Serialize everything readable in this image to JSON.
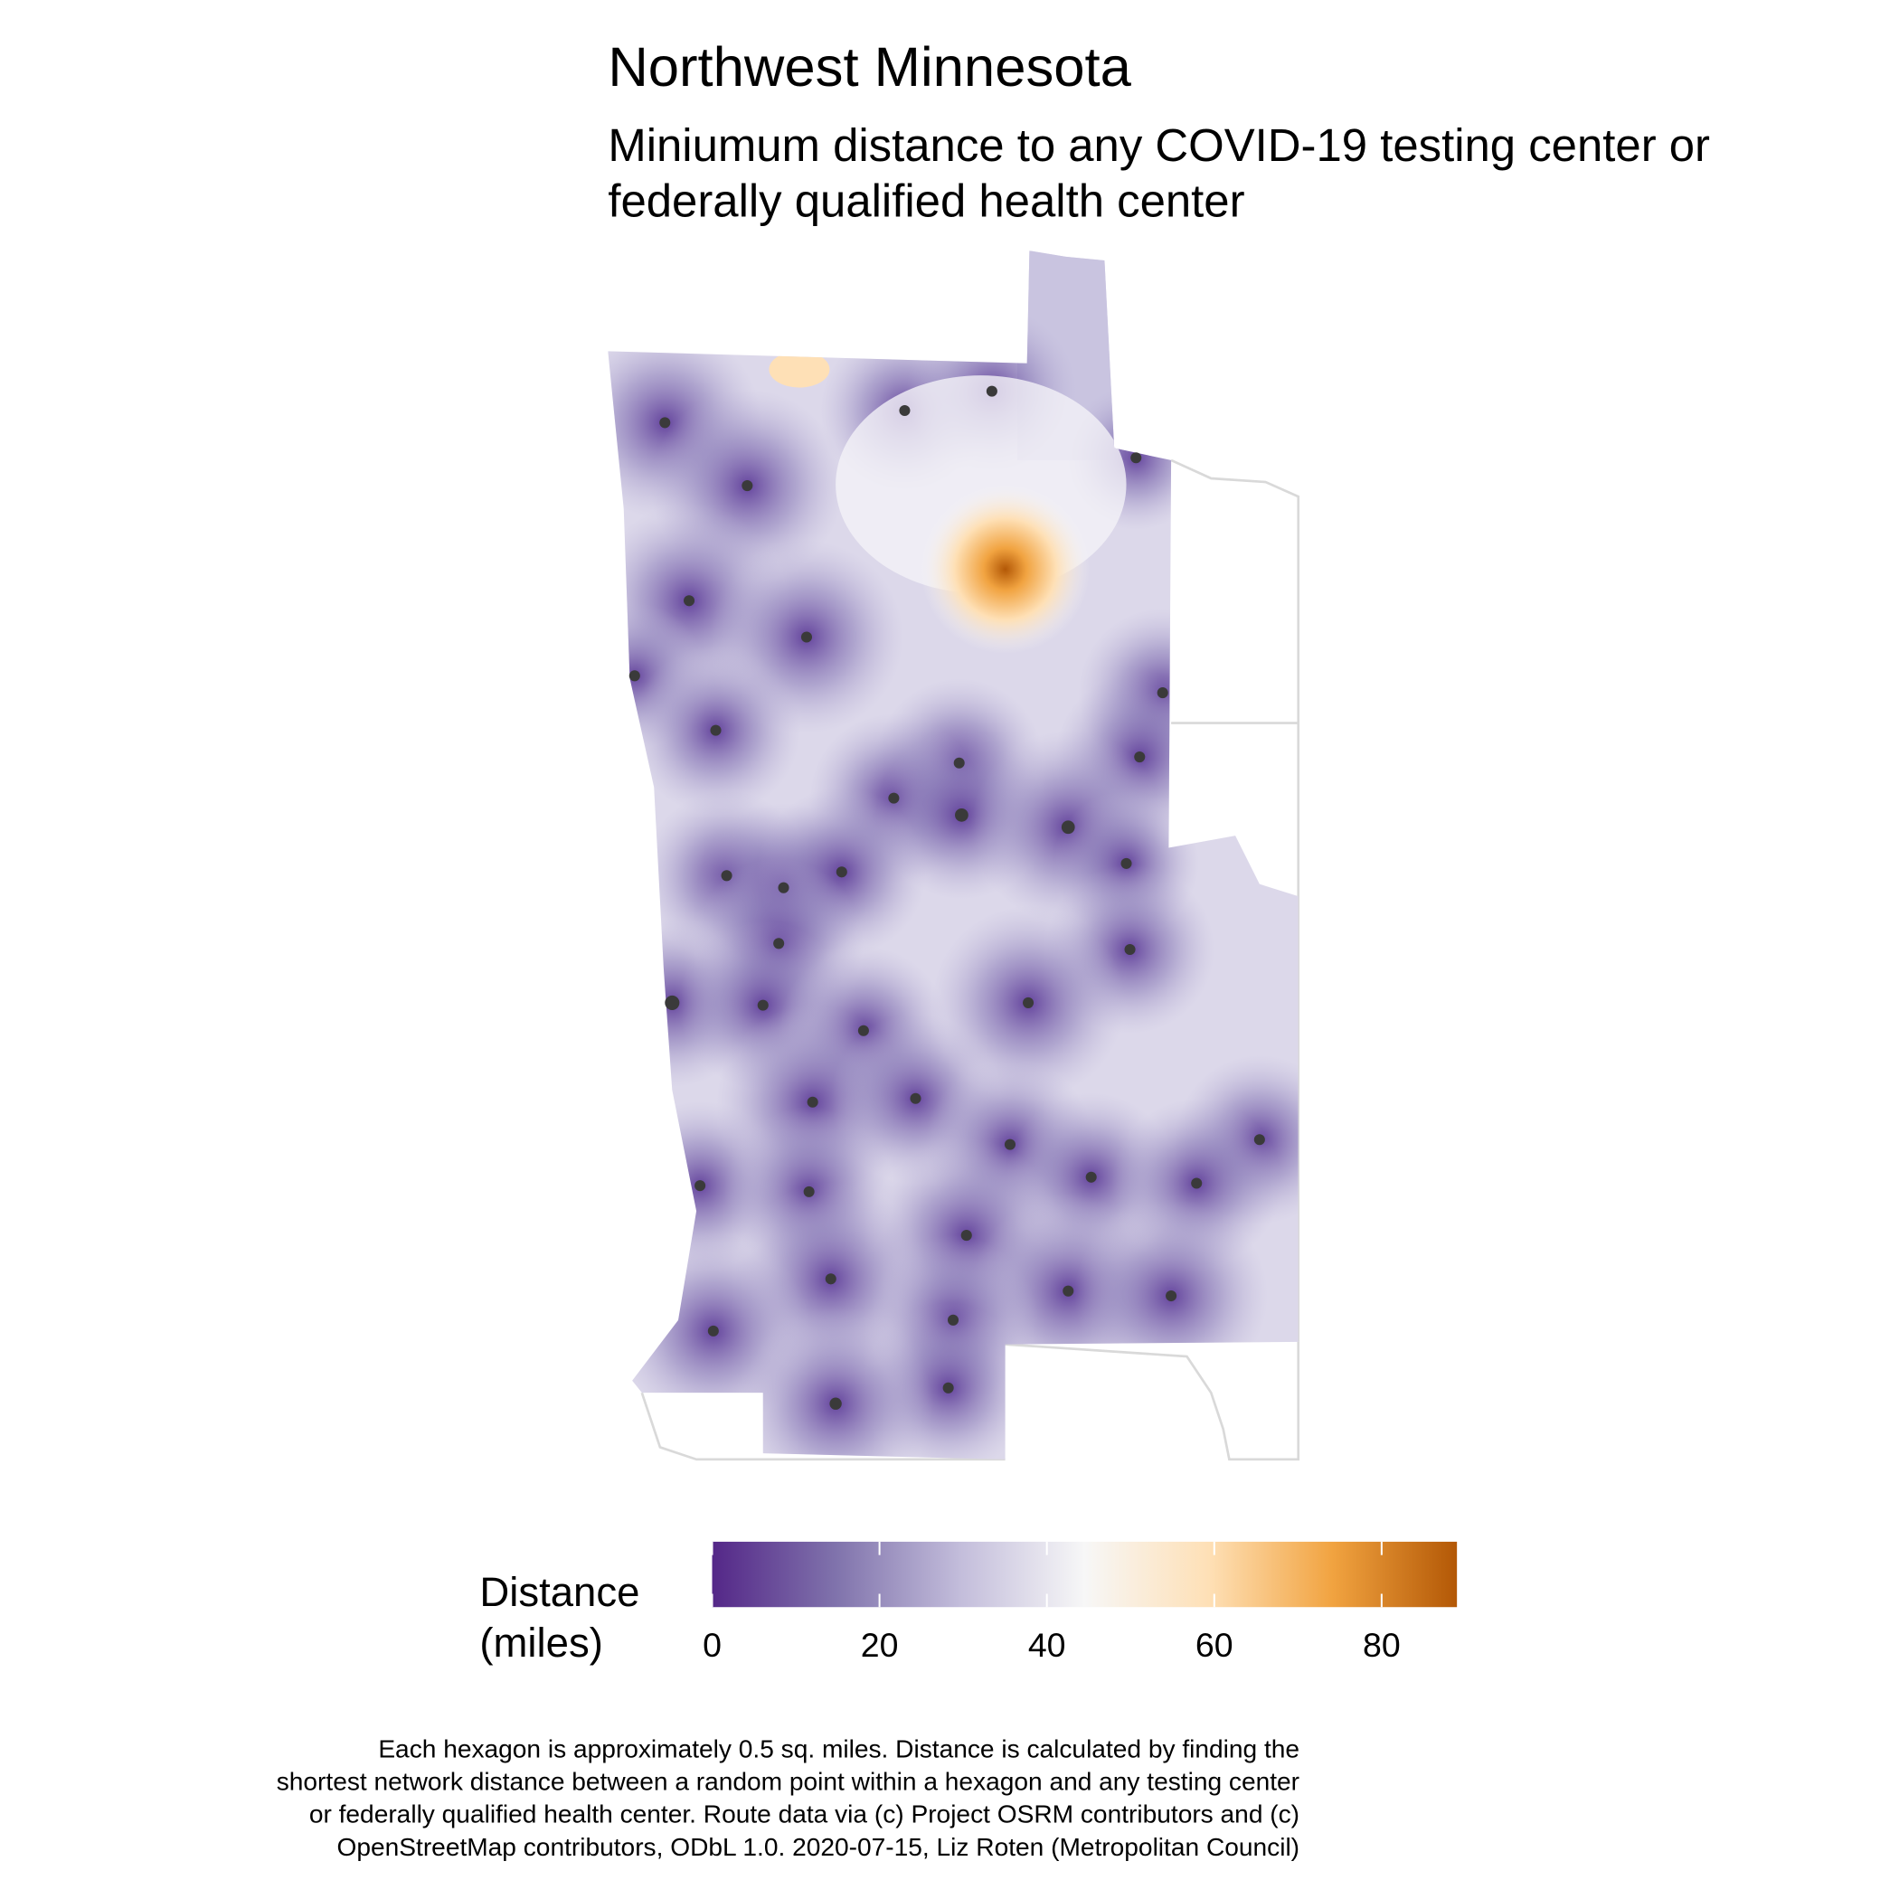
{
  "title": "Northwest Minnesota",
  "subtitle": [
    "Miniumum distance to any COVID-19 testing center or",
    "federally qualified health center"
  ],
  "legend": {
    "title": [
      "Distance",
      "(miles)"
    ],
    "limits": [
      0,
      89
    ],
    "ticks": [
      0,
      20,
      40,
      60,
      80
    ],
    "colors": [
      "#542788",
      "#8073ac",
      "#c3bddb",
      "#f7f7f7",
      "#fee0b6",
      "#f1a340",
      "#b35806"
    ]
  },
  "caption": [
    "Each hexagon is approximately 0.5 sq. miles. Distance is calculated by finding the",
    "shortest network distance between a random point within a hexagon and any testing center",
    "or federally qualified health center. Route data via (c) Project OSRM contributors and (c)",
    "OpenStreetMap contributors, ODbL 1.0. 2020-07-15, Liz Roten (Metropolitan Council)"
  ]
}
